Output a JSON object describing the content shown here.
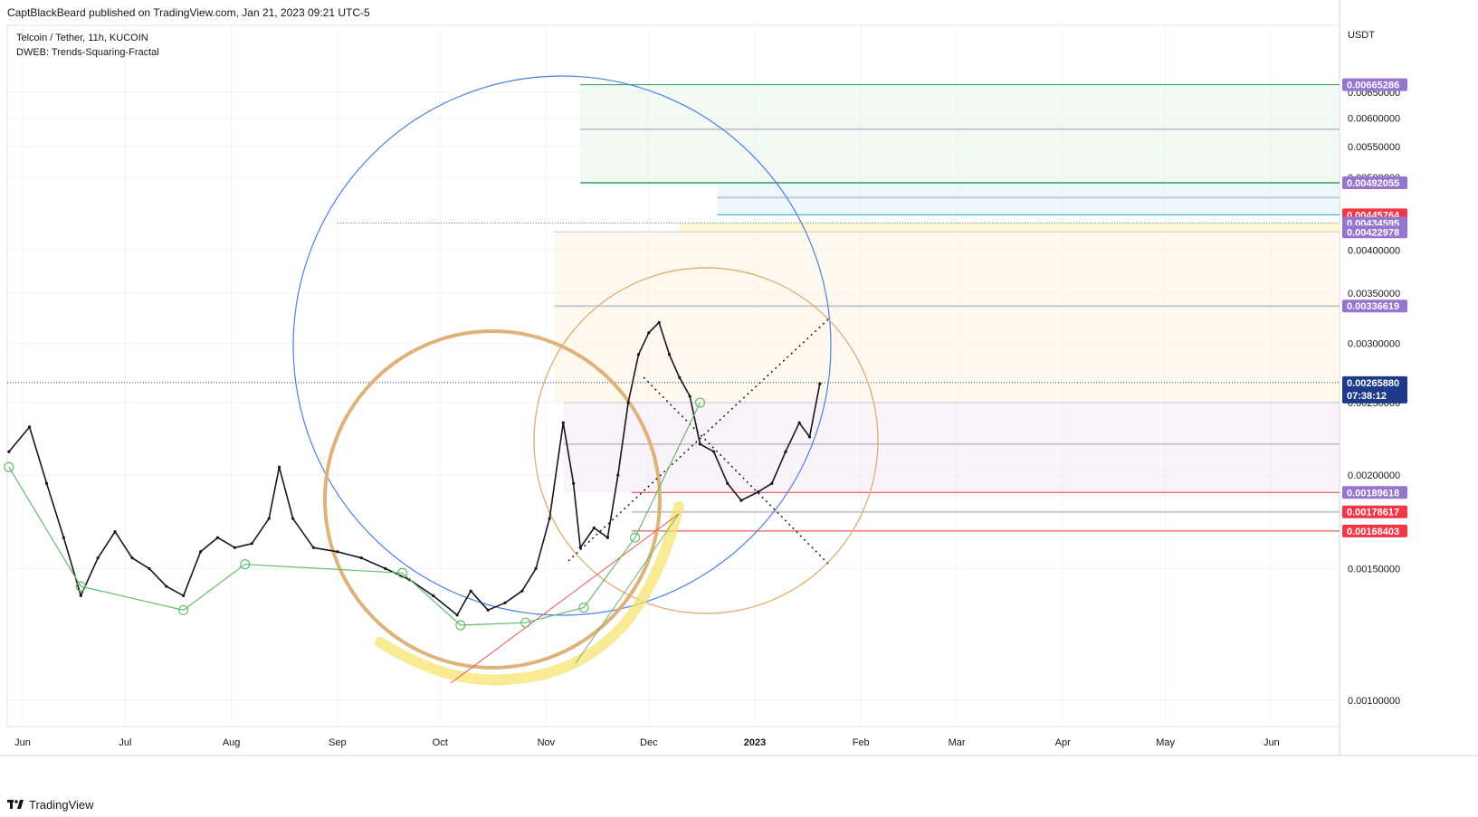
{
  "header": {
    "published": "CaptBlackBeard published on TradingView.com, Jan 21, 2023 09:21 UTC-5"
  },
  "legend": {
    "symbol": "Telcoin / Tether, 11h, KUCOIN",
    "indicator": "DWEB: Trends-Squaring-Fractal"
  },
  "footer": {
    "brand": "TradingView"
  },
  "colors": {
    "blue_circle": "#4a7fe8",
    "orange_circle": "#e0b27a",
    "green_line": "#2e9e5a",
    "teal_line": "#26a6c9",
    "red_line": "#e53935",
    "purple_tag": "#9575cd",
    "red_tag": "#f23645",
    "navy_tag": "#1e3a8a",
    "highlight": "#f7e26a"
  },
  "chart_data": {
    "type": "line",
    "title": "Telcoin / Tether, 11h, KUCOIN",
    "ylabel": "USDT",
    "xlabel": "",
    "y_scale": "log",
    "ylim": [
      0.00088,
      0.0072
    ],
    "x_ticks": [
      "Jun",
      "Jul",
      "Aug",
      "Sep",
      "Oct",
      "Nov",
      "Dec",
      "2023",
      "Feb",
      "Mar",
      "Apr",
      "May",
      "Jun"
    ],
    "y_ticks": [
      "0.00650000",
      "0.00600000",
      "0.00550000",
      "0.00500000",
      "0.00400000",
      "0.00350000",
      "0.00300000",
      "0.00250000",
      "0.00200000",
      "0.00150000",
      "0.00100000"
    ],
    "price_tags": [
      {
        "label": "0.00665286",
        "value": 0.00665286,
        "kind": "purple"
      },
      {
        "label": "0.00492055",
        "value": 0.00492055,
        "kind": "purple"
      },
      {
        "label": "0.00445764",
        "value": 0.00445764,
        "kind": "red"
      },
      {
        "label": "0.00434595",
        "value": 0.00434595,
        "kind": "purple"
      },
      {
        "label": "0.00422978",
        "value": 0.00422978,
        "kind": "purple"
      },
      {
        "label": "0.00336619",
        "value": 0.00336619,
        "kind": "purple"
      },
      {
        "label": "0.00265880",
        "value": 0.0026588,
        "kind": "navy",
        "countdown": "07:38:12"
      },
      {
        "label": "0.00189618",
        "value": 0.00189618,
        "kind": "purple"
      },
      {
        "label": "0.00178617",
        "value": 0.00178617,
        "kind": "red"
      },
      {
        "label": "0.00168403",
        "value": 0.00168403,
        "kind": "red"
      }
    ],
    "series": [
      {
        "points": [
          {
            "x": "2022-05-28",
            "y": 0.00215
          },
          {
            "x": "2022-06-03",
            "y": 0.00232
          },
          {
            "x": "2022-06-08",
            "y": 0.00195
          },
          {
            "x": "2022-06-13",
            "y": 0.00165
          },
          {
            "x": "2022-06-18",
            "y": 0.00138
          },
          {
            "x": "2022-06-23",
            "y": 0.00155
          },
          {
            "x": "2022-06-28",
            "y": 0.00168
          },
          {
            "x": "2022-07-03",
            "y": 0.00155
          },
          {
            "x": "2022-07-08",
            "y": 0.0015
          },
          {
            "x": "2022-07-13",
            "y": 0.00142
          },
          {
            "x": "2022-07-18",
            "y": 0.00138
          },
          {
            "x": "2022-07-23",
            "y": 0.00158
          },
          {
            "x": "2022-07-28",
            "y": 0.00165
          },
          {
            "x": "2022-08-02",
            "y": 0.0016
          },
          {
            "x": "2022-08-07",
            "y": 0.00162
          },
          {
            "x": "2022-08-12",
            "y": 0.00175
          },
          {
            "x": "2022-08-15",
            "y": 0.00205
          },
          {
            "x": "2022-08-19",
            "y": 0.00175
          },
          {
            "x": "2022-08-25",
            "y": 0.0016
          },
          {
            "x": "2022-09-01",
            "y": 0.00158
          },
          {
            "x": "2022-09-08",
            "y": 0.00155
          },
          {
            "x": "2022-09-15",
            "y": 0.0015
          },
          {
            "x": "2022-09-22",
            "y": 0.00145
          },
          {
            "x": "2022-09-29",
            "y": 0.00138
          },
          {
            "x": "2022-10-06",
            "y": 0.0013
          },
          {
            "x": "2022-10-10",
            "y": 0.0014
          },
          {
            "x": "2022-10-15",
            "y": 0.00132
          },
          {
            "x": "2022-10-20",
            "y": 0.00135
          },
          {
            "x": "2022-10-25",
            "y": 0.0014
          },
          {
            "x": "2022-10-29",
            "y": 0.0015
          },
          {
            "x": "2022-11-02",
            "y": 0.00175
          },
          {
            "x": "2022-11-06",
            "y": 0.00235
          },
          {
            "x": "2022-11-09",
            "y": 0.00195
          },
          {
            "x": "2022-11-11",
            "y": 0.0016
          },
          {
            "x": "2022-11-15",
            "y": 0.0017
          },
          {
            "x": "2022-11-19",
            "y": 0.00165
          },
          {
            "x": "2022-11-22",
            "y": 0.002
          },
          {
            "x": "2022-11-25",
            "y": 0.0025
          },
          {
            "x": "2022-11-28",
            "y": 0.0029
          },
          {
            "x": "2022-12-01",
            "y": 0.0031
          },
          {
            "x": "2022-12-04",
            "y": 0.0032
          },
          {
            "x": "2022-12-07",
            "y": 0.0029
          },
          {
            "x": "2022-12-10",
            "y": 0.0027
          },
          {
            "x": "2022-12-13",
            "y": 0.00255
          },
          {
            "x": "2022-12-16",
            "y": 0.0022
          },
          {
            "x": "2022-12-20",
            "y": 0.00215
          },
          {
            "x": "2022-12-24",
            "y": 0.00195
          },
          {
            "x": "2022-12-28",
            "y": 0.00185
          },
          {
            "x": "2023-01-02",
            "y": 0.0019
          },
          {
            "x": "2023-01-06",
            "y": 0.00195
          },
          {
            "x": "2023-01-10",
            "y": 0.00215
          },
          {
            "x": "2023-01-14",
            "y": 0.00235
          },
          {
            "x": "2023-01-17",
            "y": 0.00225
          },
          {
            "x": "2023-01-20",
            "y": 0.00265
          }
        ]
      }
    ]
  }
}
